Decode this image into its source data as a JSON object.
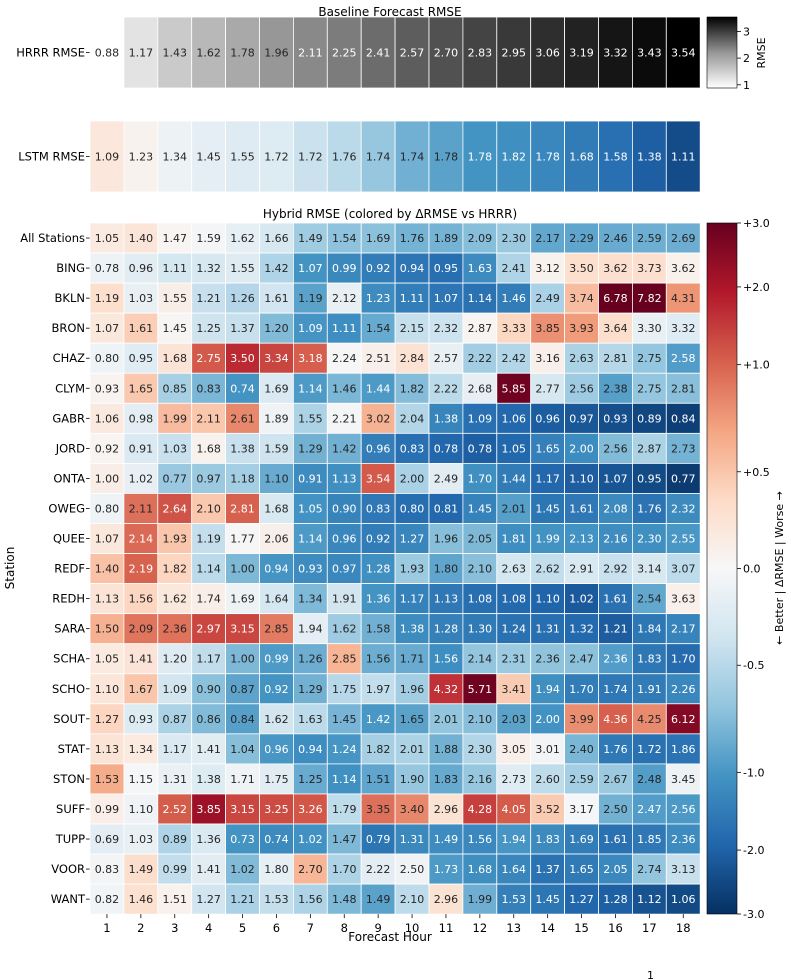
{
  "chart_data": [
    {
      "type": "heatmap",
      "title": "Baseline Forecast RMSE",
      "rows": [
        "HRRR RMSE"
      ],
      "values": [
        [
          0.88,
          1.17,
          1.43,
          1.62,
          1.78,
          1.96,
          2.11,
          2.25,
          2.41,
          2.57,
          2.7,
          2.83,
          2.95,
          3.06,
          3.19,
          3.32,
          3.43,
          3.54
        ]
      ],
      "colormap": "Greys",
      "colorbar": {
        "label": "RMSE",
        "ticks": [
          "1",
          "2",
          "3"
        ],
        "range": [
          0.88,
          3.54
        ]
      }
    },
    {
      "type": "heatmap",
      "title": "",
      "rows": [
        "LSTM RMSE"
      ],
      "values": [
        [
          1.09,
          1.23,
          1.34,
          1.45,
          1.55,
          1.72,
          1.72,
          1.76,
          1.74,
          1.74,
          1.78,
          1.78,
          1.82,
          1.78,
          1.68,
          1.58,
          1.38,
          1.11
        ]
      ],
      "colormap": "RdBu_r",
      "color_by": "delta vs HRRR RMSE"
    },
    {
      "type": "heatmap",
      "title": "Hybrid RMSE (colored by ΔRMSE vs HRRR)",
      "xlabel": "Forecast Hour",
      "ylabel": "Station",
      "x": [
        "1",
        "2",
        "3",
        "4",
        "5",
        "6",
        "7",
        "8",
        "9",
        "10",
        "11",
        "12",
        "13",
        "14",
        "15",
        "16",
        "17",
        "18"
      ],
      "rows": [
        "All Stations",
        "BING",
        "BKLN",
        "BRON",
        "CHAZ",
        "CLYM",
        "GABR",
        "JORD",
        "ONTA",
        "OWEG",
        "QUEE",
        "REDF",
        "REDH",
        "SARA",
        "SCHA",
        "SCHO",
        "SOUT",
        "STAT",
        "STON",
        "SUFF",
        "TUPP",
        "VOOR",
        "WANT"
      ],
      "values": [
        [
          1.05,
          1.4,
          1.47,
          1.59,
          1.62,
          1.66,
          1.49,
          1.54,
          1.69,
          1.76,
          1.89,
          2.09,
          2.3,
          2.17,
          2.29,
          2.46,
          2.59,
          2.69
        ],
        [
          0.78,
          0.96,
          1.11,
          1.32,
          1.55,
          1.42,
          1.07,
          0.99,
          0.92,
          0.94,
          0.95,
          1.63,
          2.41,
          3.12,
          3.5,
          3.62,
          3.73,
          3.62
        ],
        [
          1.19,
          1.03,
          1.55,
          1.21,
          1.26,
          1.61,
          1.19,
          2.12,
          1.23,
          1.11,
          1.07,
          1.14,
          1.46,
          2.49,
          3.74,
          6.78,
          7.82,
          4.31
        ],
        [
          1.07,
          1.61,
          1.45,
          1.25,
          1.37,
          1.2,
          1.09,
          1.11,
          1.54,
          2.15,
          2.32,
          2.87,
          3.33,
          3.85,
          3.93,
          3.64,
          3.3,
          3.32
        ],
        [
          0.8,
          0.95,
          1.68,
          2.75,
          3.5,
          3.34,
          3.18,
          2.24,
          2.51,
          2.84,
          2.57,
          2.22,
          2.42,
          3.16,
          2.63,
          2.81,
          2.75,
          2.58
        ],
        [
          0.93,
          1.65,
          0.85,
          0.83,
          0.74,
          1.69,
          1.14,
          1.46,
          1.44,
          1.82,
          2.22,
          2.68,
          5.85,
          2.77,
          2.56,
          2.38,
          2.75,
          2.81
        ],
        [
          1.06,
          0.98,
          1.99,
          2.11,
          2.61,
          1.89,
          1.55,
          2.21,
          3.02,
          2.04,
          1.38,
          1.09,
          1.06,
          0.96,
          0.97,
          0.93,
          0.89,
          0.84
        ],
        [
          0.92,
          0.91,
          1.03,
          1.68,
          1.38,
          1.59,
          1.29,
          1.42,
          0.96,
          0.83,
          0.78,
          0.78,
          1.05,
          1.65,
          2.0,
          2.56,
          2.87,
          2.73
        ],
        [
          1.0,
          1.02,
          0.77,
          0.97,
          1.18,
          1.1,
          0.91,
          1.13,
          3.54,
          2.0,
          2.49,
          1.7,
          1.44,
          1.17,
          1.1,
          1.07,
          0.95,
          0.77
        ],
        [
          0.8,
          2.11,
          2.64,
          2.1,
          2.81,
          1.68,
          1.05,
          0.9,
          0.83,
          0.8,
          0.81,
          1.45,
          2.01,
          1.45,
          1.61,
          2.08,
          1.76,
          2.32
        ],
        [
          1.07,
          2.14,
          1.93,
          1.19,
          1.77,
          2.06,
          1.14,
          0.96,
          0.92,
          1.27,
          1.96,
          2.05,
          1.81,
          1.99,
          2.13,
          2.16,
          2.3,
          2.55
        ],
        [
          1.4,
          2.19,
          1.82,
          1.14,
          1.0,
          0.94,
          0.93,
          0.97,
          1.28,
          1.93,
          1.8,
          2.1,
          2.63,
          2.62,
          2.91,
          2.92,
          3.14,
          3.07
        ],
        [
          1.13,
          1.56,
          1.62,
          1.74,
          1.69,
          1.64,
          1.34,
          1.91,
          1.36,
          1.17,
          1.13,
          1.08,
          1.08,
          1.1,
          1.02,
          1.61,
          2.54,
          3.63
        ],
        [
          1.5,
          2.09,
          2.36,
          2.97,
          3.15,
          2.85,
          1.94,
          1.62,
          1.58,
          1.38,
          1.28,
          1.3,
          1.24,
          1.31,
          1.32,
          1.21,
          1.84,
          2.17
        ],
        [
          1.05,
          1.41,
          1.2,
          1.17,
          1.0,
          0.99,
          1.26,
          2.85,
          1.56,
          1.71,
          1.56,
          2.14,
          2.31,
          2.36,
          2.47,
          2.36,
          1.83,
          1.7
        ],
        [
          1.1,
          1.67,
          1.09,
          0.9,
          0.87,
          0.92,
          1.29,
          1.75,
          1.97,
          1.96,
          4.32,
          5.71,
          3.41,
          1.94,
          1.7,
          1.74,
          1.91,
          2.26
        ],
        [
          1.27,
          0.93,
          0.87,
          0.86,
          0.84,
          1.62,
          1.63,
          1.45,
          1.42,
          1.65,
          2.01,
          2.1,
          2.03,
          2.0,
          3.99,
          4.36,
          4.25,
          6.12
        ],
        [
          1.13,
          1.34,
          1.17,
          1.41,
          1.04,
          0.96,
          0.94,
          1.24,
          1.82,
          2.01,
          1.88,
          2.3,
          3.05,
          3.01,
          2.4,
          1.76,
          1.72,
          1.86
        ],
        [
          1.53,
          1.15,
          1.31,
          1.38,
          1.71,
          1.75,
          1.25,
          1.14,
          1.51,
          1.9,
          1.83,
          2.16,
          2.73,
          2.6,
          2.59,
          2.67,
          2.48,
          3.45
        ],
        [
          0.99,
          1.1,
          2.52,
          3.85,
          3.15,
          3.25,
          3.26,
          1.79,
          3.35,
          3.4,
          2.96,
          4.28,
          4.05,
          3.52,
          3.17,
          2.5,
          2.47,
          2.56
        ],
        [
          0.69,
          1.03,
          0.89,
          1.36,
          0.73,
          0.74,
          1.02,
          1.47,
          0.79,
          1.31,
          1.49,
          1.56,
          1.94,
          1.83,
          1.69,
          1.61,
          1.85,
          2.36
        ],
        [
          0.83,
          1.49,
          0.99,
          1.41,
          1.02,
          1.8,
          2.7,
          1.7,
          2.22,
          2.5,
          1.73,
          1.68,
          1.64,
          1.37,
          1.65,
          2.05,
          2.74,
          3.13
        ],
        [
          0.82,
          1.46,
          1.51,
          1.27,
          1.21,
          1.53,
          1.56,
          1.48,
          1.49,
          2.1,
          2.96,
          1.99,
          1.53,
          1.45,
          1.27,
          1.28,
          1.12,
          1.06
        ]
      ],
      "colormap": "RdBu_r",
      "color_by": "delta vs HRRR RMSE",
      "colorbar": {
        "label": "← Better | ΔRMSE | Worse →",
        "ticks": [
          "+3.0",
          "+2.0",
          "+1.0",
          "+0.5",
          "0.0",
          "-0.5",
          "-1.0",
          "-2.0",
          "-3.0"
        ],
        "tick_values": [
          3.0,
          2.0,
          1.0,
          0.5,
          0.0,
          -0.5,
          -1.0,
          -2.0,
          -3.0
        ],
        "scale": "symlog-like",
        "range": [
          -3.0,
          3.0
        ]
      }
    }
  ],
  "corner_mark": "1"
}
